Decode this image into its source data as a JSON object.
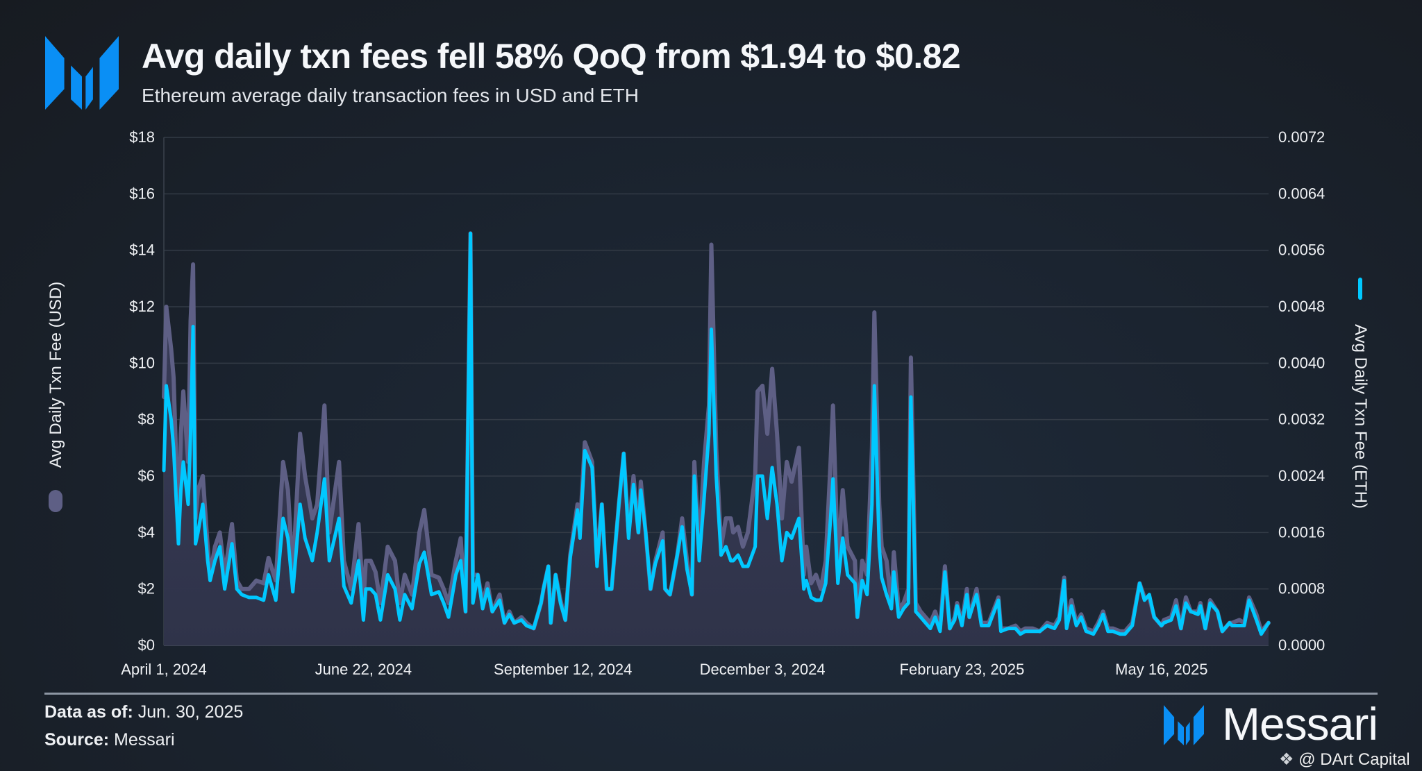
{
  "header": {
    "title": "Avg daily txn fees fell 58% QoQ from $1.94 to $0.82",
    "subtitle": "Ethereum average daily transaction fees in USD and ETH",
    "logo_icon": "messari-logo-icon"
  },
  "colors": {
    "brand_blue": "#0a8ff5",
    "usd_series": "#5e5f85",
    "usd_fill": "#2f3349",
    "eth_series": "#00c8ff",
    "gridline": "#333b46"
  },
  "chart_data": {
    "type": "line",
    "title": "Avg daily txn fees fell 58% QoQ from $1.94 to $0.82",
    "subtitle": "Ethereum average daily transaction fees in USD and ETH",
    "ylabel_left": "Avg Daily Txn Fee (USD)",
    "ylabel_right": "Avg Daily Txn Fee (ETH)",
    "ylim_left": [
      0,
      18
    ],
    "ylim_right": [
      0,
      0.0072
    ],
    "left_ticks": [
      "$0",
      "$2",
      "$4",
      "$6",
      "$8",
      "$10",
      "$12",
      "$14",
      "$16",
      "$18"
    ],
    "right_ticks": [
      "0.0000",
      "0.0008",
      "0.0016",
      "0.0024",
      "0.0032",
      "0.0040",
      "0.0048",
      "0.0056",
      "0.0064",
      "0.0072"
    ],
    "x_ticks": [
      {
        "label": "April 1, 2024",
        "date": "2024-04-01"
      },
      {
        "label": "June 22, 2024",
        "date": "2024-06-22"
      },
      {
        "label": "September 12, 2024",
        "date": "2024-09-12"
      },
      {
        "label": "December 3, 2024",
        "date": "2024-12-03"
      },
      {
        "label": "February 23, 2025",
        "date": "2025-02-23"
      },
      {
        "label": "May 16, 2025",
        "date": "2025-05-16"
      }
    ],
    "xlim": [
      "2024-04-01",
      "2025-06-29"
    ],
    "grid": true,
    "series_styles": [
      {
        "name": "Avg Daily Txn Fee (USD)",
        "axis": "left",
        "style": "area",
        "color": "#5e5f85"
      },
      {
        "name": "Avg Daily Txn Fee (ETH)",
        "axis": "right",
        "style": "line",
        "color": "#00c8ff"
      }
    ],
    "fields": [
      "date",
      "usd",
      "eth"
    ],
    "points": [
      [
        "2024-04-01",
        8.8,
        0.00248
      ],
      [
        "2024-04-02",
        12.0,
        0.00368
      ],
      [
        "2024-04-04",
        10.5,
        0.0032
      ],
      [
        "2024-04-05",
        9.5,
        0.0028
      ],
      [
        "2024-04-07",
        4.0,
        0.00144
      ],
      [
        "2024-04-08",
        7.5,
        0.0022
      ],
      [
        "2024-04-09",
        9.0,
        0.0026
      ],
      [
        "2024-04-11",
        6.5,
        0.002
      ],
      [
        "2024-04-12",
        11.5,
        0.003
      ],
      [
        "2024-04-13",
        13.5,
        0.00452
      ],
      [
        "2024-04-14",
        4.5,
        0.00144
      ],
      [
        "2024-04-15",
        5.5,
        0.0016
      ],
      [
        "2024-04-17",
        6.0,
        0.002
      ],
      [
        "2024-04-19",
        3.5,
        0.0012
      ],
      [
        "2024-04-20",
        2.5,
        0.00092
      ],
      [
        "2024-04-22",
        3.5,
        0.0012
      ],
      [
        "2024-04-24",
        4.0,
        0.0014
      ],
      [
        "2024-04-26",
        2.5,
        0.0008
      ],
      [
        "2024-04-29",
        4.3,
        0.00144
      ],
      [
        "2024-05-01",
        2.3,
        0.0008
      ],
      [
        "2024-05-03",
        2.0,
        0.00072
      ],
      [
        "2024-05-06",
        2.0,
        0.00068
      ],
      [
        "2024-05-09",
        2.3,
        0.00068
      ],
      [
        "2024-05-12",
        2.2,
        0.00064
      ],
      [
        "2024-05-14",
        3.1,
        0.001
      ],
      [
        "2024-05-17",
        2.3,
        0.00064
      ],
      [
        "2024-05-20",
        6.5,
        0.0018
      ],
      [
        "2024-05-22",
        5.5,
        0.00152
      ],
      [
        "2024-05-24",
        2.5,
        0.00076
      ],
      [
        "2024-05-27",
        7.5,
        0.002
      ],
      [
        "2024-05-29",
        6.0,
        0.00152
      ],
      [
        "2024-06-01",
        4.5,
        0.0012
      ],
      [
        "2024-06-03",
        5.0,
        0.0016
      ],
      [
        "2024-06-06",
        8.5,
        0.00236
      ],
      [
        "2024-06-08",
        4.0,
        0.0012
      ],
      [
        "2024-06-12",
        6.5,
        0.0018
      ],
      [
        "2024-06-14",
        3.0,
        0.00084
      ],
      [
        "2024-06-17",
        2.0,
        0.0006
      ],
      [
        "2024-06-20",
        4.3,
        0.0012
      ],
      [
        "2024-06-22",
        1.5,
        0.00036
      ],
      [
        "2024-06-23",
        3.0,
        0.0008
      ],
      [
        "2024-06-25",
        3.0,
        0.0008
      ],
      [
        "2024-06-27",
        2.6,
        0.00072
      ],
      [
        "2024-06-29",
        1.5,
        0.00036
      ],
      [
        "2024-07-02",
        3.5,
        0.001
      ],
      [
        "2024-07-05",
        3.0,
        0.0008
      ],
      [
        "2024-07-07",
        1.5,
        0.00036
      ],
      [
        "2024-07-09",
        2.5,
        0.00072
      ],
      [
        "2024-07-12",
        1.8,
        0.00052
      ],
      [
        "2024-07-15",
        4.0,
        0.00116
      ],
      [
        "2024-07-17",
        4.8,
        0.00132
      ],
      [
        "2024-07-20",
        2.5,
        0.00072
      ],
      [
        "2024-07-23",
        2.4,
        0.00076
      ],
      [
        "2024-07-25",
        2.0,
        0.0006
      ],
      [
        "2024-07-27",
        1.5,
        0.0004
      ],
      [
        "2024-07-30",
        3.0,
        0.001
      ],
      [
        "2024-08-01",
        3.8,
        0.0012
      ],
      [
        "2024-08-03",
        1.2,
        0.00048
      ],
      [
        "2024-08-05",
        14.6,
        0.00584
      ],
      [
        "2024-08-06",
        2.5,
        0.0006
      ],
      [
        "2024-08-08",
        2.5,
        0.001
      ],
      [
        "2024-08-10",
        1.5,
        0.00052
      ],
      [
        "2024-08-12",
        2.2,
        0.0008
      ],
      [
        "2024-08-14",
        1.2,
        0.00048
      ],
      [
        "2024-08-17",
        1.8,
        0.00064
      ],
      [
        "2024-08-19",
        0.8,
        0.00032
      ],
      [
        "2024-08-21",
        1.2,
        0.00044
      ],
      [
        "2024-08-23",
        0.8,
        0.00032
      ],
      [
        "2024-08-26",
        1.0,
        0.00036
      ],
      [
        "2024-08-28",
        0.8,
        0.00028
      ],
      [
        "2024-08-31",
        0.6,
        0.00024
      ],
      [
        "2024-09-03",
        1.5,
        0.0006
      ],
      [
        "2024-09-04",
        2.0,
        0.0008
      ],
      [
        "2024-09-06",
        2.8,
        0.00112
      ],
      [
        "2024-09-07",
        0.8,
        0.00032
      ],
      [
        "2024-09-09",
        2.5,
        0.001
      ],
      [
        "2024-09-11",
        1.6,
        0.0006
      ],
      [
        "2024-09-13",
        0.9,
        0.00036
      ],
      [
        "2024-09-15",
        3.2,
        0.00124
      ],
      [
        "2024-09-18",
        5.0,
        0.00192
      ],
      [
        "2024-09-19",
        4.2,
        0.00152
      ],
      [
        "2024-09-21",
        7.2,
        0.00276
      ],
      [
        "2024-09-24",
        6.5,
        0.00252
      ],
      [
        "2024-09-26",
        3.0,
        0.00112
      ],
      [
        "2024-09-28",
        5.0,
        0.002
      ],
      [
        "2024-09-30",
        2.0,
        0.0008
      ],
      [
        "2024-10-02",
        2.0,
        0.0008
      ],
      [
        "2024-10-05",
        5.0,
        0.002
      ],
      [
        "2024-10-07",
        6.8,
        0.00272
      ],
      [
        "2024-10-09",
        4.0,
        0.00152
      ],
      [
        "2024-10-11",
        6.0,
        0.00228
      ],
      [
        "2024-10-13",
        4.0,
        0.0016
      ],
      [
        "2024-10-14",
        5.8,
        0.0022
      ],
      [
        "2024-10-16",
        4.0,
        0.0016
      ],
      [
        "2024-10-18",
        2.0,
        0.0008
      ],
      [
        "2024-10-20",
        3.0,
        0.00116
      ],
      [
        "2024-10-23",
        4.0,
        0.00148
      ],
      [
        "2024-10-24",
        2.0,
        0.0008
      ],
      [
        "2024-10-26",
        1.8,
        0.00072
      ],
      [
        "2024-10-29",
        3.2,
        0.00128
      ],
      [
        "2024-10-31",
        4.5,
        0.00168
      ],
      [
        "2024-11-02",
        3.0,
        0.00108
      ],
      [
        "2024-11-04",
        1.8,
        0.00072
      ],
      [
        "2024-11-05",
        6.5,
        0.0024
      ],
      [
        "2024-11-07",
        3.5,
        0.0012
      ],
      [
        "2024-11-09",
        6.5,
        0.00208
      ],
      [
        "2024-11-11",
        8.5,
        0.003
      ],
      [
        "2024-11-12",
        14.2,
        0.00448
      ],
      [
        "2024-11-14",
        7.0,
        0.0024
      ],
      [
        "2024-11-16",
        3.5,
        0.00128
      ],
      [
        "2024-11-18",
        4.5,
        0.0014
      ],
      [
        "2024-11-20",
        4.5,
        0.0012
      ],
      [
        "2024-11-21",
        4.0,
        0.0012
      ],
      [
        "2024-11-23",
        4.2,
        0.00128
      ],
      [
        "2024-11-25",
        3.5,
        0.00112
      ],
      [
        "2024-11-27",
        4.0,
        0.00112
      ],
      [
        "2024-11-30",
        6.0,
        0.0014
      ],
      [
        "2024-12-01",
        9.0,
        0.0024
      ],
      [
        "2024-12-03",
        9.2,
        0.0024
      ],
      [
        "2024-12-05",
        7.5,
        0.0018
      ],
      [
        "2024-12-07",
        9.8,
        0.00252
      ],
      [
        "2024-12-09",
        7.5,
        0.002
      ],
      [
        "2024-12-11",
        4.5,
        0.0012
      ],
      [
        "2024-12-13",
        6.5,
        0.0016
      ],
      [
        "2024-12-15",
        5.8,
        0.00152
      ],
      [
        "2024-12-18",
        7.0,
        0.0018
      ],
      [
        "2024-12-20",
        2.5,
        0.0008
      ],
      [
        "2024-12-21",
        3.5,
        0.00092
      ],
      [
        "2024-12-23",
        2.2,
        0.00068
      ],
      [
        "2024-12-25",
        2.5,
        0.00064
      ],
      [
        "2024-12-27",
        2.0,
        0.00064
      ],
      [
        "2024-12-29",
        3.0,
        0.00088
      ],
      [
        "2024-12-31",
        6.5,
        0.0018
      ],
      [
        "2025-01-01",
        8.5,
        0.00236
      ],
      [
        "2025-01-03",
        3.0,
        0.00088
      ],
      [
        "2025-01-05",
        5.5,
        0.00152
      ],
      [
        "2025-01-07",
        3.5,
        0.001
      ],
      [
        "2025-01-10",
        3.0,
        0.00088
      ],
      [
        "2025-01-11",
        1.0,
        0.0004
      ],
      [
        "2025-01-13",
        3.0,
        0.00092
      ],
      [
        "2025-01-15",
        2.5,
        0.00072
      ],
      [
        "2025-01-17",
        7.0,
        0.002
      ],
      [
        "2025-01-18",
        11.8,
        0.00368
      ],
      [
        "2025-01-20",
        5.0,
        0.0014
      ],
      [
        "2025-01-21",
        3.5,
        0.00096
      ],
      [
        "2025-01-23",
        3.0,
        0.00072
      ],
      [
        "2025-01-25",
        1.5,
        0.00052
      ],
      [
        "2025-01-26",
        3.3,
        0.00104
      ],
      [
        "2025-01-28",
        1.3,
        0.0004
      ],
      [
        "2025-01-30",
        1.5,
        0.00052
      ],
      [
        "2025-02-01",
        2.0,
        0.0006
      ],
      [
        "2025-02-02",
        10.2,
        0.00352
      ],
      [
        "2025-02-04",
        1.5,
        0.00048
      ],
      [
        "2025-02-06",
        1.2,
        0.0004
      ],
      [
        "2025-02-08",
        1.0,
        0.00032
      ],
      [
        "2025-02-10",
        0.8,
        0.00024
      ],
      [
        "2025-02-12",
        1.2,
        0.0004
      ],
      [
        "2025-02-14",
        0.6,
        0.0002
      ],
      [
        "2025-02-16",
        2.8,
        0.00104
      ],
      [
        "2025-02-18",
        0.6,
        0.00024
      ],
      [
        "2025-02-20",
        1.0,
        0.00036
      ],
      [
        "2025-02-21",
        1.5,
        0.00056
      ],
      [
        "2025-02-23",
        0.8,
        0.00028
      ],
      [
        "2025-02-25",
        2.0,
        0.00072
      ],
      [
        "2025-02-26",
        1.0,
        0.0004
      ],
      [
        "2025-03-01",
        2.0,
        0.00072
      ],
      [
        "2025-03-03",
        0.8,
        0.00028
      ],
      [
        "2025-03-06",
        0.8,
        0.00028
      ],
      [
        "2025-03-10",
        1.7,
        0.00064
      ],
      [
        "2025-03-11",
        0.6,
        0.0002
      ],
      [
        "2025-03-14",
        0.6,
        0.00024
      ],
      [
        "2025-03-17",
        0.7,
        0.00024
      ],
      [
        "2025-03-19",
        0.5,
        0.00016
      ],
      [
        "2025-03-21",
        0.6,
        0.0002
      ],
      [
        "2025-03-24",
        0.6,
        0.0002
      ],
      [
        "2025-03-27",
        0.5,
        0.0002
      ],
      [
        "2025-03-30",
        0.8,
        0.00028
      ],
      [
        "2025-04-02",
        0.7,
        0.00024
      ],
      [
        "2025-04-04",
        1.0,
        0.00036
      ],
      [
        "2025-04-06",
        2.4,
        0.00092
      ],
      [
        "2025-04-07",
        0.8,
        0.00024
      ],
      [
        "2025-04-09",
        1.6,
        0.00056
      ],
      [
        "2025-04-11",
        0.8,
        0.00028
      ],
      [
        "2025-04-13",
        1.1,
        0.0004
      ],
      [
        "2025-04-15",
        0.6,
        0.0002
      ],
      [
        "2025-04-18",
        0.5,
        0.00016
      ],
      [
        "2025-04-20",
        0.8,
        0.00028
      ],
      [
        "2025-04-22",
        1.2,
        0.00044
      ],
      [
        "2025-04-24",
        0.6,
        0.0002
      ],
      [
        "2025-04-26",
        0.6,
        0.0002
      ],
      [
        "2025-04-29",
        0.5,
        0.00016
      ],
      [
        "2025-05-01",
        0.5,
        0.00016
      ],
      [
        "2025-05-04",
        0.8,
        0.00028
      ],
      [
        "2025-05-07",
        2.2,
        0.00088
      ],
      [
        "2025-05-09",
        1.7,
        0.00064
      ],
      [
        "2025-05-11",
        1.7,
        0.00072
      ],
      [
        "2025-05-13",
        1.0,
        0.0004
      ],
      [
        "2025-05-16",
        0.7,
        0.00028
      ],
      [
        "2025-05-17",
        0.9,
        0.00032
      ],
      [
        "2025-05-20",
        1.0,
        0.00036
      ],
      [
        "2025-05-22",
        1.6,
        0.00056
      ],
      [
        "2025-05-24",
        0.6,
        0.00024
      ],
      [
        "2025-05-26",
        1.7,
        0.0006
      ],
      [
        "2025-05-28",
        1.2,
        0.00048
      ],
      [
        "2025-05-31",
        1.2,
        0.00044
      ],
      [
        "2025-06-01",
        1.5,
        0.00056
      ],
      [
        "2025-06-03",
        0.6,
        0.00024
      ],
      [
        "2025-06-05",
        1.6,
        0.0006
      ],
      [
        "2025-06-08",
        1.2,
        0.00048
      ],
      [
        "2025-06-10",
        0.5,
        0.0002
      ],
      [
        "2025-06-13",
        0.8,
        0.00032
      ],
      [
        "2025-06-14",
        0.8,
        0.00028
      ],
      [
        "2025-06-17",
        0.9,
        0.00028
      ],
      [
        "2025-06-19",
        0.8,
        0.00028
      ],
      [
        "2025-06-21",
        1.7,
        0.00064
      ],
      [
        "2025-06-24",
        1.1,
        0.00036
      ],
      [
        "2025-06-26",
        0.5,
        0.00016
      ],
      [
        "2025-06-29",
        0.8,
        0.00032
      ]
    ]
  },
  "footer": {
    "data_as_of_label": "Data as of:",
    "data_as_of_value": "Jun. 30, 2025",
    "source_label": "Source:",
    "source_value": "Messari",
    "brand_name": "Messari",
    "watermark": "@ DArt Capital"
  }
}
